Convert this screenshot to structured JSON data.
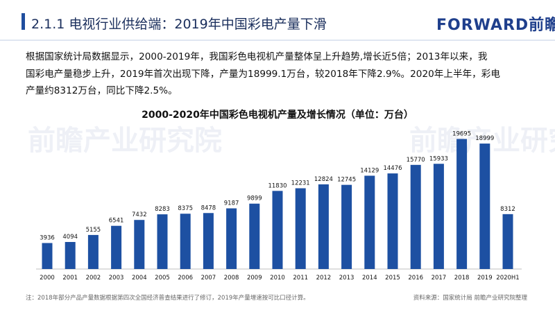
{
  "header": {
    "title": "2.1.1 电视行业供给端：2019年中国彩电产量下滑",
    "logo": "FORWARD前瞻"
  },
  "intro": {
    "line1": "根据国家统计局数据显示，2000-2019年，我国彩色电视机产量整体呈上升趋势,增长近5倍；2013年以来，我",
    "line2": "国彩电产量稳步上升，2019年首次出现下降，产量为18999.1万台，较2018年下降2.9%。2020年上半年，彩电",
    "line3": "产量约8312万台，同比下降2.5%。"
  },
  "chart_data": {
    "type": "bar",
    "title": "2000-2020年中国彩色电视机产量及增长情况（单位：万台）",
    "categories": [
      "2000",
      "2001",
      "2002",
      "2003",
      "2004",
      "2005",
      "2006",
      "2007",
      "2008",
      "2009",
      "2010",
      "2011",
      "2012",
      "2013",
      "2014",
      "2015",
      "2016",
      "2017",
      "2018",
      "2019",
      "2020H1"
    ],
    "values": [
      3936,
      4094,
      5155,
      6541,
      7432,
      8283,
      8375,
      8478,
      9187,
      9899,
      11830,
      12231,
      12824,
      12745,
      14129,
      14476,
      15770,
      15933,
      19695,
      18999,
      8312
    ],
    "series_name": "产量",
    "unit": "万台",
    "ylim": [
      0,
      21000
    ],
    "grid": false,
    "legend": "none",
    "bar_color": "#1d50a2"
  },
  "footer": {
    "note": "注：2018年部分产品产量数据根据第四次全国经济普查结果进行了修订，2019年产量增速按可比口径计算。",
    "source": "资料来源：国家统计局 前瞻产业研究院整理"
  },
  "watermark": "前瞻产业研究院"
}
